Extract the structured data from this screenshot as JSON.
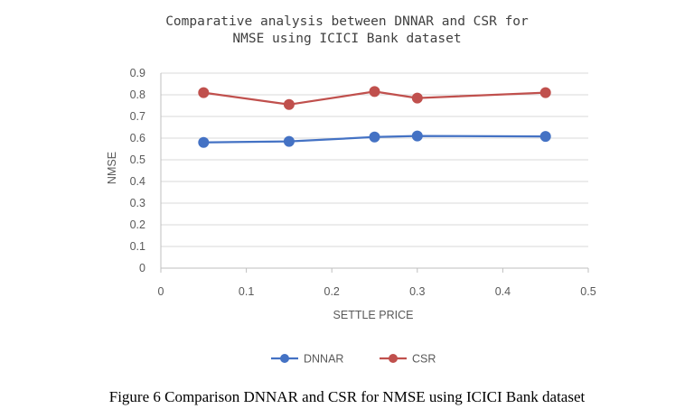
{
  "chart_data": {
    "type": "line",
    "title_lines": [
      "Comparative  analysis between  DNNAR and  CSR for",
      "NMSE using ICICI Bank dataset"
    ],
    "xlabel": "SETTLE PRICE",
    "ylabel": "NMSE",
    "xlim": [
      0,
      0.5
    ],
    "ylim": [
      0,
      0.9
    ],
    "x_ticks": [
      "0",
      "0.1",
      "0.2",
      "0.3",
      "0.4",
      "0.5"
    ],
    "y_ticks": [
      "0",
      "0.1",
      "0.2",
      "0.3",
      "0.4",
      "0.5",
      "0.6",
      "0.7",
      "0.8",
      "0.9"
    ],
    "grid": "horizontal",
    "legend_position": "bottom",
    "series": [
      {
        "name": "DNNAR",
        "color": "#4472C4",
        "x": [
          0.05,
          0.15,
          0.25,
          0.3,
          0.45
        ],
        "y": [
          0.58,
          0.585,
          0.605,
          0.61,
          0.608
        ]
      },
      {
        "name": "CSR",
        "color": "#C0504D",
        "x": [
          0.05,
          0.15,
          0.25,
          0.3,
          0.45
        ],
        "y": [
          0.81,
          0.755,
          0.815,
          0.785,
          0.81
        ]
      }
    ]
  },
  "caption": "Figure 6 Comparison DNNAR and CSR for NMSE using ICICI Bank dataset"
}
